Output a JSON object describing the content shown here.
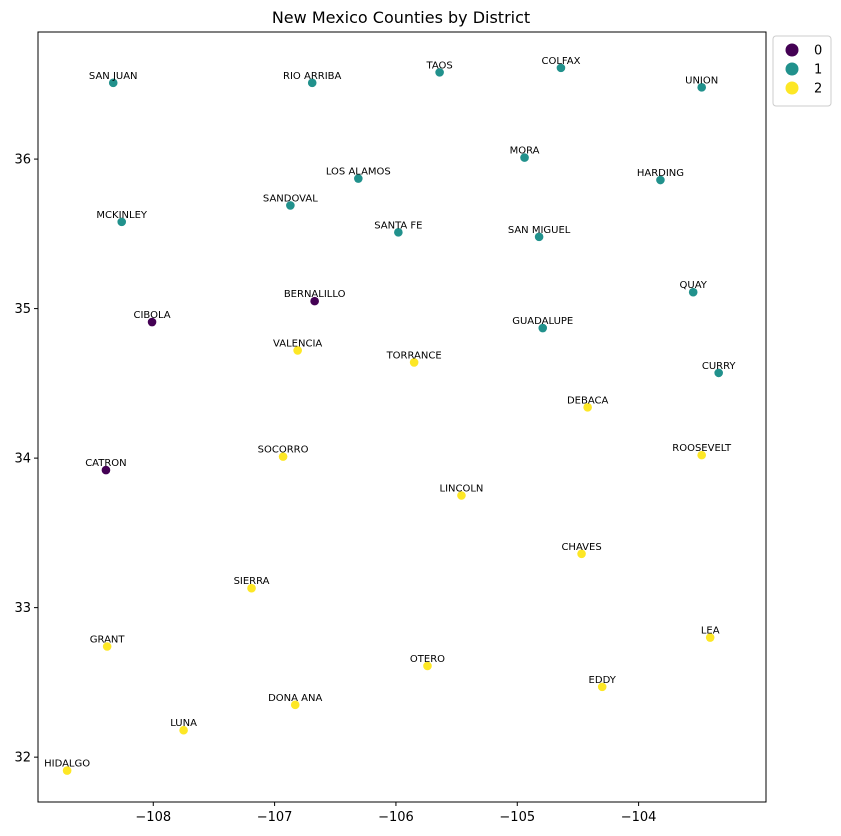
{
  "chart_data": {
    "type": "scatter",
    "title": "New Mexico Counties by District",
    "xlabel": "",
    "ylabel": "",
    "xlim": [
      -108.95,
      -102.95
    ],
    "ylim": [
      31.7,
      36.85
    ],
    "x_ticks": [
      -108,
      -107,
      -106,
      -105,
      -104
    ],
    "x_tick_labels": [
      "−108",
      "−107",
      "−106",
      "−105",
      "−104"
    ],
    "y_ticks": [
      32,
      33,
      34,
      35,
      36
    ],
    "y_tick_labels": [
      "32",
      "33",
      "34",
      "35",
      "36"
    ],
    "grid": false,
    "legend": {
      "placement": "outside-top-right",
      "entries": [
        {
          "label": "0",
          "color": "#440154"
        },
        {
          "label": "1",
          "color": "#21918c"
        },
        {
          "label": "2",
          "color": "#fde725"
        }
      ]
    },
    "points": [
      {
        "name": "SAN JUAN",
        "x": -108.33,
        "y": 36.51,
        "district": 1
      },
      {
        "name": "RIO ARRIBA",
        "x": -106.69,
        "y": 36.51,
        "district": 1
      },
      {
        "name": "TAOS",
        "x": -105.64,
        "y": 36.58,
        "district": 1
      },
      {
        "name": "COLFAX",
        "x": -104.64,
        "y": 36.61,
        "district": 1
      },
      {
        "name": "UNION",
        "x": -103.48,
        "y": 36.48,
        "district": 1
      },
      {
        "name": "MORA",
        "x": -104.94,
        "y": 36.01,
        "district": 1
      },
      {
        "name": "LOS ALAMOS",
        "x": -106.31,
        "y": 35.87,
        "district": 1
      },
      {
        "name": "HARDING",
        "x": -103.82,
        "y": 35.86,
        "district": 1
      },
      {
        "name": "MCKINLEY",
        "x": -108.26,
        "y": 35.58,
        "district": 1
      },
      {
        "name": "SANDOVAL",
        "x": -106.87,
        "y": 35.69,
        "district": 1
      },
      {
        "name": "SANTA FE",
        "x": -105.98,
        "y": 35.51,
        "district": 1
      },
      {
        "name": "SAN MIGUEL",
        "x": -104.82,
        "y": 35.48,
        "district": 1
      },
      {
        "name": "QUAY",
        "x": -103.55,
        "y": 35.11,
        "district": 1
      },
      {
        "name": "BERNALILLO",
        "x": -106.67,
        "y": 35.05,
        "district": 0
      },
      {
        "name": "CIBOLA",
        "x": -108.01,
        "y": 34.91,
        "district": 0
      },
      {
        "name": "GUADALUPE",
        "x": -104.79,
        "y": 34.87,
        "district": 1
      },
      {
        "name": "VALENCIA",
        "x": -106.81,
        "y": 34.72,
        "district": 2
      },
      {
        "name": "TORRANCE",
        "x": -105.85,
        "y": 34.64,
        "district": 2
      },
      {
        "name": "CURRY",
        "x": -103.34,
        "y": 34.57,
        "district": 1
      },
      {
        "name": "DEBACA",
        "x": -104.42,
        "y": 34.34,
        "district": 2
      },
      {
        "name": "ROOSEVELT",
        "x": -103.48,
        "y": 34.02,
        "district": 2
      },
      {
        "name": "SOCORRO",
        "x": -106.93,
        "y": 34.01,
        "district": 2
      },
      {
        "name": "CATRON",
        "x": -108.39,
        "y": 33.92,
        "district": 0
      },
      {
        "name": "LINCOLN",
        "x": -105.46,
        "y": 33.75,
        "district": 2
      },
      {
        "name": "CHAVES",
        "x": -104.47,
        "y": 33.36,
        "district": 2
      },
      {
        "name": "SIERRA",
        "x": -107.19,
        "y": 33.13,
        "district": 2
      },
      {
        "name": "LEA",
        "x": -103.41,
        "y": 32.8,
        "district": 2
      },
      {
        "name": "GRANT",
        "x": -108.38,
        "y": 32.74,
        "district": 2
      },
      {
        "name": "OTERO",
        "x": -105.74,
        "y": 32.61,
        "district": 2
      },
      {
        "name": "EDDY",
        "x": -104.3,
        "y": 32.47,
        "district": 2
      },
      {
        "name": "DONA ANA",
        "x": -106.83,
        "y": 32.35,
        "district": 2
      },
      {
        "name": "LUNA",
        "x": -107.75,
        "y": 32.18,
        "district": 2
      },
      {
        "name": "HIDALGO",
        "x": -108.71,
        "y": 31.91,
        "district": 2
      }
    ]
  }
}
